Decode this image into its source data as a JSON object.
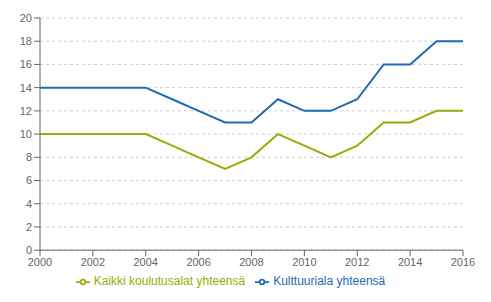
{
  "chart_data": {
    "type": "line",
    "x": [
      2000,
      2001,
      2002,
      2003,
      2004,
      2005,
      2006,
      2007,
      2008,
      2009,
      2010,
      2011,
      2012,
      2013,
      2014,
      2015,
      2016
    ],
    "series": [
      {
        "name": "Kulttuuriala yhteensä",
        "color": "#1f6ab0",
        "values": [
          14,
          14,
          14,
          14,
          14,
          13,
          12,
          11,
          11,
          13,
          12,
          12,
          13,
          16,
          16,
          18,
          18
        ]
      },
      {
        "name": "Kaikki koulutusalat yhteensä",
        "color": "#9aab05",
        "values": [
          10,
          10,
          10,
          10,
          10,
          9,
          8,
          7,
          8,
          10,
          9,
          8,
          9,
          11,
          11,
          12,
          12
        ]
      }
    ],
    "xlim": [
      2000,
      2016
    ],
    "xticks": [
      2000,
      2002,
      2004,
      2006,
      2008,
      2010,
      2012,
      2014,
      2016
    ],
    "ylim": [
      0,
      20
    ],
    "yticks": [
      0,
      2,
      4,
      6,
      8,
      10,
      12,
      14,
      16,
      18,
      20
    ],
    "grid": "y",
    "legend": "bottom"
  }
}
